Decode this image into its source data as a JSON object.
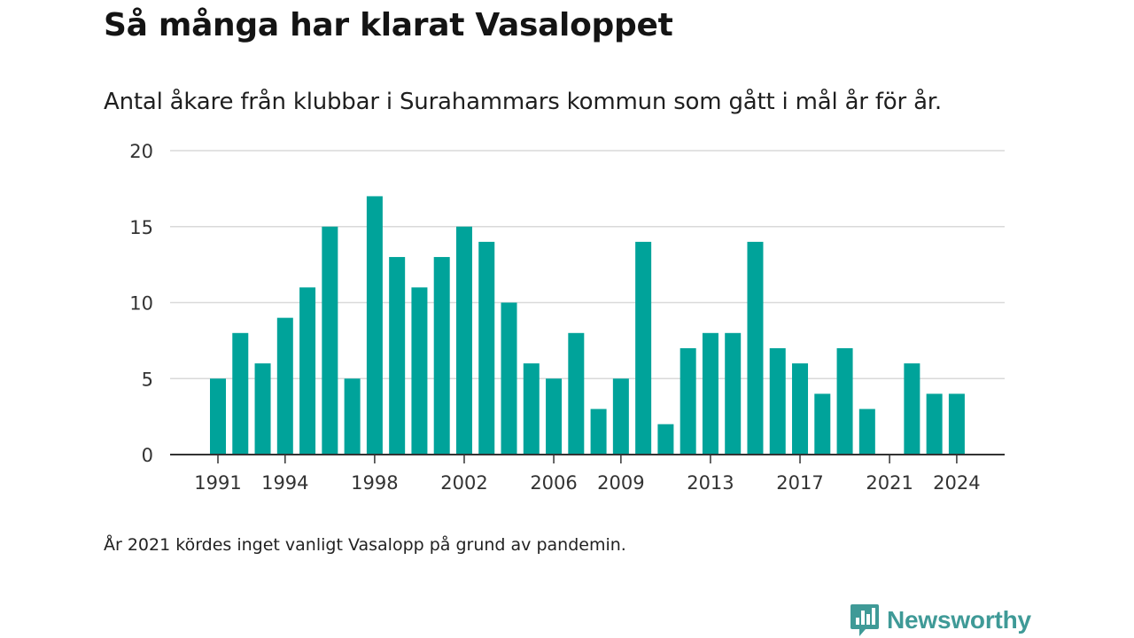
{
  "title": "Så många har klarat Vasaloppet",
  "subtitle": "Antal åkare från klubbar i Surahammars kommun som gått i mål år för år.",
  "footnote": "År 2021 kördes inget vanligt Vasalopp på grund av pandemin.",
  "brand": {
    "name": "Newsworthy",
    "icon": "newsworthy-logo-icon",
    "color": "#3f9a97"
  },
  "colors": {
    "bar": "#00a39a",
    "grid": "#d9d9d9",
    "axis": "#333333",
    "text": "#333333"
  },
  "chart_data": {
    "type": "bar",
    "title": "",
    "xlabel": "",
    "ylabel": "",
    "ylim": [
      0,
      20
    ],
    "yticks": [
      0,
      5,
      10,
      15,
      20
    ],
    "grid": true,
    "x_tick_labels": [
      "1991",
      "1994",
      "1998",
      "2002",
      "2006",
      "2009",
      "2013",
      "2017",
      "2021",
      "2024"
    ],
    "categories": [
      "1991",
      "1992",
      "1993",
      "1994",
      "1995",
      "1996",
      "1997",
      "1998",
      "1999",
      "2000",
      "2001",
      "2002",
      "2003",
      "2004",
      "2005",
      "2006",
      "2007",
      "2008",
      "2009",
      "2010",
      "2011",
      "2012",
      "2013",
      "2014",
      "2015",
      "2016",
      "2017",
      "2018",
      "2019",
      "2020",
      "2021",
      "2022",
      "2023",
      "2024"
    ],
    "values": [
      5,
      8,
      6,
      9,
      11,
      15,
      5,
      17,
      13,
      11,
      13,
      15,
      14,
      10,
      6,
      5,
      8,
      3,
      5,
      14,
      2,
      7,
      8,
      8,
      14,
      7,
      6,
      4,
      7,
      3,
      0,
      6,
      4,
      4
    ]
  }
}
